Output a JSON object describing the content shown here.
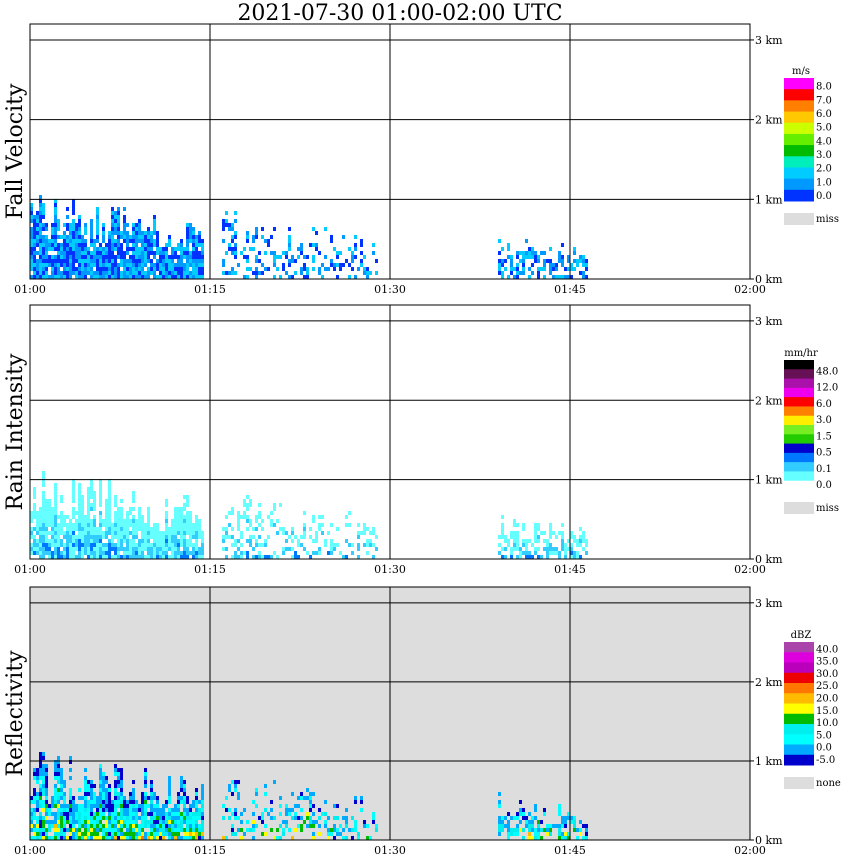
{
  "chart_data": [
    {
      "type": "heatmap",
      "title": "2021-07-30   01:00-02:00 UTC",
      "ylabel": "Fall Velocity",
      "units": "m/s",
      "x_ticks": [
        "01:00",
        "01:15",
        "01:30",
        "01:45",
        "02:00"
      ],
      "y_ticks": [
        "0 km",
        "1 km",
        "2 km",
        "3 km"
      ],
      "ylim_km": [
        0,
        3.2
      ],
      "background": "#ffffff",
      "colorbar": {
        "labels": [
          "8.0",
          "7.0",
          "6.0",
          "5.0",
          "4.0",
          "3.0",
          "2.0",
          "1.0",
          "0.0"
        ],
        "colors": [
          "#ff00ff",
          "#ff0000",
          "#ff7f00",
          "#ffc800",
          "#ccff00",
          "#66ee00",
          "#00bb00",
          "#00eebb",
          "#00ccff",
          "#0099ff",
          "#0033ff"
        ],
        "miss_label": "miss",
        "miss_color": "#dddddd"
      },
      "echo_segments": [
        {
          "t0": 0,
          "t1": 14.5,
          "top_km": 1.2,
          "fill": 0.9
        },
        {
          "t0": 16,
          "t1": 29,
          "top_km": 0.9,
          "fill": 0.35
        },
        {
          "t0": 39,
          "t1": 46.5,
          "top_km": 0.65,
          "fill": 0.55
        }
      ]
    },
    {
      "type": "heatmap",
      "ylabel": "Rain Intensity",
      "units": "mm/hr",
      "x_ticks": [
        "01:00",
        "01:15",
        "01:30",
        "01:45",
        "02:00"
      ],
      "y_ticks": [
        "0 km",
        "1 km",
        "2 km",
        "3 km"
      ],
      "ylim_km": [
        0,
        3.2
      ],
      "background": "#ffffff",
      "colorbar": {
        "labels": [
          "48.0",
          "12.0",
          "6.0",
          "3.0",
          "1.5",
          "0.5",
          "0.1",
          "0.0"
        ],
        "colors": [
          "#000000",
          "#661155",
          "#aa11aa",
          "#ee00ee",
          "#ff0000",
          "#ff7f00",
          "#ffee00",
          "#77ee22",
          "#22cc00",
          "#0000cc",
          "#0077ff",
          "#33ccff",
          "#66ffff",
          "#ffffff"
        ],
        "miss_label": "miss",
        "miss_color": "#dddddd"
      },
      "echo_segments": [
        {
          "t0": 0,
          "t1": 14.5,
          "top_km": 1.2,
          "fill": 0.9
        },
        {
          "t0": 16,
          "t1": 29,
          "top_km": 0.9,
          "fill": 0.35
        },
        {
          "t0": 39,
          "t1": 46.5,
          "top_km": 0.65,
          "fill": 0.55
        }
      ]
    },
    {
      "type": "heatmap",
      "ylabel": "Reflectivity",
      "units": "dBZ",
      "x_ticks": [
        "01:00",
        "01:15",
        "01:30",
        "01:45",
        "02:00"
      ],
      "y_ticks": [
        "0 km",
        "1 km",
        "2 km",
        "3 km"
      ],
      "ylim_km": [
        0,
        3.2
      ],
      "background": "#dddddd",
      "colorbar": {
        "labels": [
          "40.0",
          "35.0",
          "30.0",
          "25.0",
          "20.0",
          "15.0",
          "10.0",
          "5.0",
          "0.0",
          "-5.0"
        ],
        "colors": [
          "#aa44aa",
          "#dd00dd",
          "#bb00bb",
          "#ee0000",
          "#ff7700",
          "#ffbb00",
          "#ffff00",
          "#00bb00",
          "#00eeee",
          "#00ffff",
          "#00aaff",
          "#0000cc"
        ],
        "miss_label": "none",
        "miss_color": "#dddddd"
      },
      "echo_segments": [
        {
          "t0": 0,
          "t1": 14.5,
          "top_km": 1.2,
          "fill": 0.9
        },
        {
          "t0": 16,
          "t1": 29,
          "top_km": 0.9,
          "fill": 0.35
        },
        {
          "t0": 39,
          "t1": 46.5,
          "top_km": 0.65,
          "fill": 0.55
        }
      ]
    }
  ]
}
